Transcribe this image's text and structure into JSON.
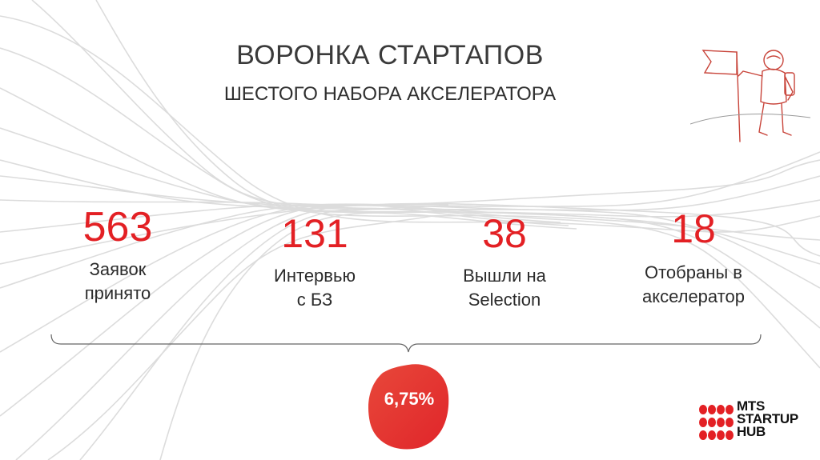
{
  "title": "ВОРОНКА СТАРТАПОВ",
  "subtitle": "ШЕСТОГО НАБОРА АКСЕЛЕРАТОРА",
  "metrics": [
    {
      "value": "563",
      "label_line1": "Заявок",
      "label_line2": "принято"
    },
    {
      "value": "131",
      "label_line1": "Интервью",
      "label_line2": "с БЗ"
    },
    {
      "value": "38",
      "label_line1": "Вышли на",
      "label_line2": "Selection"
    },
    {
      "value": "18",
      "label_line1": "Отобраны в",
      "label_line2": "акселератор"
    }
  ],
  "conversion": "6,75%",
  "logo": {
    "line1": "MTS",
    "line2": "STARTUP",
    "line3": "HUB"
  },
  "colors": {
    "accent": "#e32024",
    "text": "#2b2b2b",
    "lines": "#d9d9d9"
  },
  "icons": {
    "illustration": "astronaut-with-flag-icon",
    "logo": "mts-dots-icon"
  }
}
